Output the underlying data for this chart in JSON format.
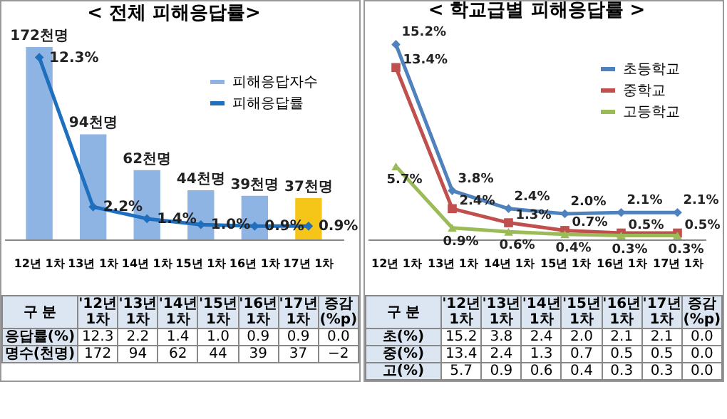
{
  "chart_data": [
    {
      "type": "bar",
      "title": "< 전체 피해응답률>",
      "categories": [
        "12년 1차",
        "13년 1차",
        "14년 1차",
        "15년 1차",
        "16년 1차",
        "17년 1차"
      ],
      "legend": "top right",
      "tick_labels": "x",
      "series": [
        {
          "name": "피해응답자수",
          "type": "bar",
          "color": "#8eb4e3",
          "colors": [
            "#8eb4e3",
            "#8eb4e3",
            "#8eb4e3",
            "#8eb4e3",
            "#8eb4e3",
            "#f5c518"
          ],
          "values": [
            172,
            94,
            62,
            44,
            39,
            37
          ],
          "value_labels": [
            "172천명",
            "94천명",
            "62천명",
            "44천명",
            "39천명",
            "37천명"
          ]
        },
        {
          "name": "피해응답률",
          "type": "line",
          "axis": "y2",
          "color": "#1f6fbf",
          "marker": "diamond",
          "values": [
            12.3,
            2.2,
            1.4,
            1.0,
            0.9,
            0.9
          ],
          "value_labels": [
            "12.3%",
            "2.2%",
            "1.4%",
            "1.0%",
            "0.9%",
            "0.9%"
          ]
        }
      ],
      "annotations": [
        "구 분",
        "'12년 1차",
        "'13년 1차",
        "'14년 1차",
        "'15년 1차",
        "'16년 1차",
        "'17년 1차",
        "증감 (%p)",
        "응답률(%)",
        "12.3",
        "2.2",
        "1.4",
        "1.0",
        "0.9",
        "0.9",
        "0.0",
        "명수(천명)",
        "172",
        "94",
        "62",
        "44",
        "39",
        "37",
        "−2"
      ]
    },
    {
      "type": "line",
      "title": "< 학교급별 피해응답률 >",
      "categories": [
        "12년 1차",
        "13년 1차",
        "14년 1차",
        "15년 1차",
        "16년 1차",
        "17년 1차"
      ],
      "legend": "top right",
      "tick_labels": "x",
      "series": [
        {
          "name": "초등학교",
          "color": "#4f81bd",
          "marker": "diamond",
          "values": [
            15.2,
            3.8,
            2.4,
            2.0,
            2.1,
            2.1
          ],
          "value_labels": [
            "15.2%",
            "3.8%",
            "2.4%",
            "2.0%",
            "2.1%",
            "2.1%"
          ]
        },
        {
          "name": "중학교",
          "color": "#c0504d",
          "marker": "square",
          "values": [
            13.4,
            2.4,
            1.3,
            0.7,
            0.5,
            0.5
          ],
          "value_labels": [
            "13.4%",
            "2.4%",
            "1.3%",
            "0.7%",
            "0.5%",
            "0.5%"
          ]
        },
        {
          "name": "고등학교",
          "color": "#9bbb59",
          "marker": "triangle",
          "values": [
            5.7,
            0.9,
            0.6,
            0.4,
            0.3,
            0.3
          ],
          "value_labels": [
            "5.7%",
            "0.9%",
            "0.6%",
            "0.4%",
            "0.3%",
            "0.3%"
          ]
        }
      ],
      "annotations": [
        "구 분",
        "'12년 1차",
        "'13년 1차",
        "'14년 1차",
        "'15년 1차",
        "'16년 1차",
        "'17년 1차",
        "증감 (%p)",
        "초(%)",
        "15.2",
        "3.8",
        "2.4",
        "2.0",
        "2.1",
        "2.1",
        "0.0",
        "중(%)",
        "13.4",
        "2.4",
        "1.3",
        "0.7",
        "0.5",
        "0.5",
        "0.0",
        "고(%)",
        "5.7",
        "0.9",
        "0.6",
        "0.4",
        "0.3",
        "0.3",
        "0.0"
      ]
    }
  ]
}
